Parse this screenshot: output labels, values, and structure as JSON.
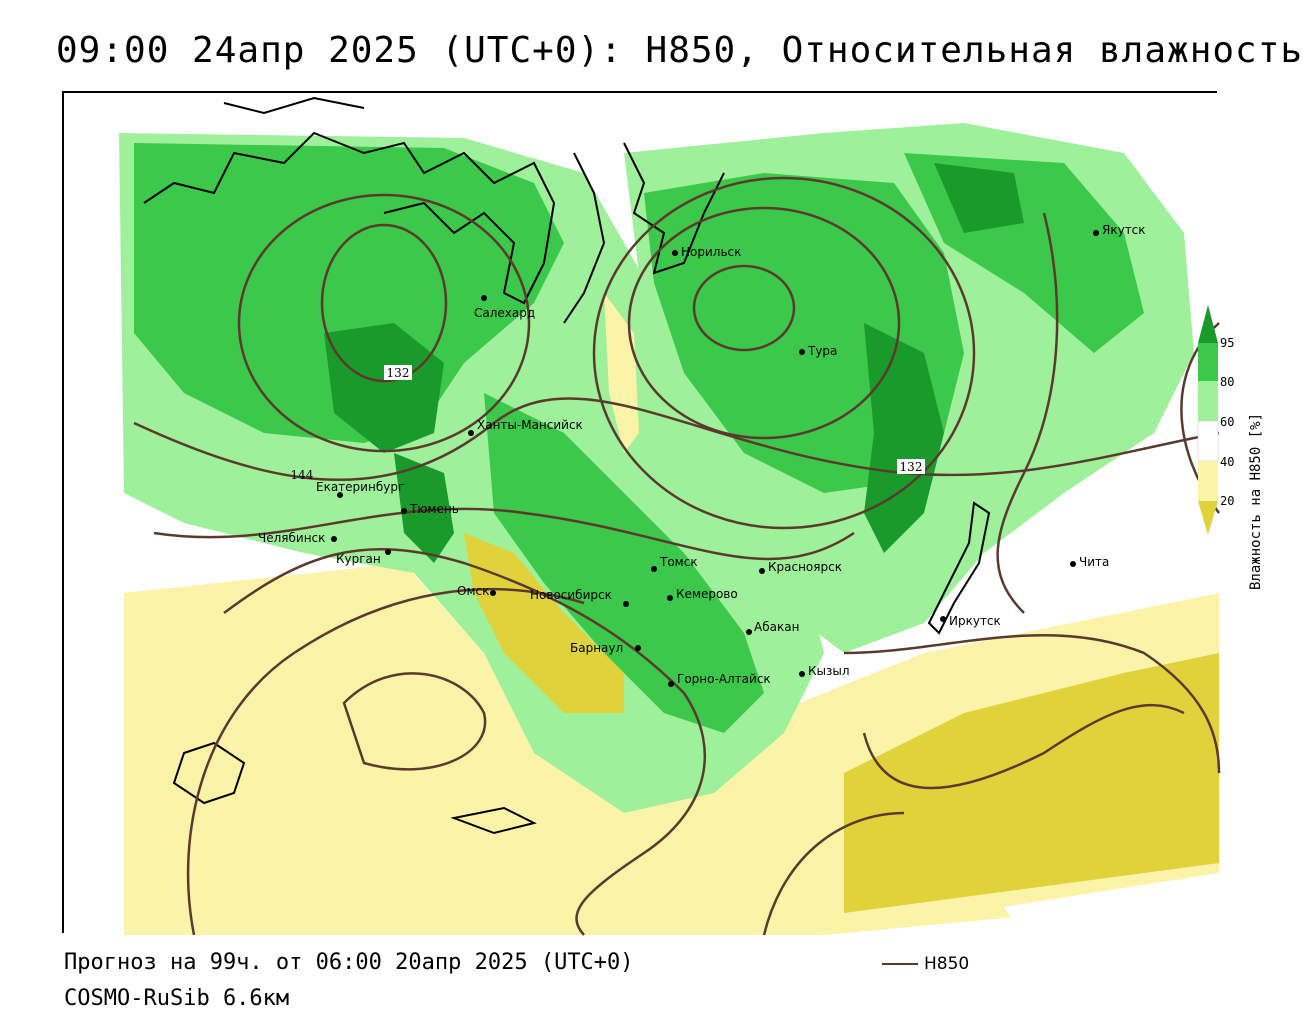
{
  "header": {
    "title": "09:00 24апр 2025 (UTC+0): H850, Относительная влажность"
  },
  "footer": {
    "forecast": "Прогноз на 99ч. от 06:00 20апр 2025 (UTC+0)",
    "model": "COSMO-RuSib 6.6км",
    "line_legend_label": "H850"
  },
  "legend": {
    "title": "Влажность на H850 [%]",
    "ticks": [
      "95",
      "80",
      "60",
      "40",
      "20"
    ],
    "colors": {
      "dark_green": "#1a9a2a",
      "green": "#3cc84a",
      "light_green": "#9ef09a",
      "pale_green": "#d6fbd0",
      "white": "#ffffff",
      "pale_yellow": "#fbf3a8",
      "yellow": "#e0d23a"
    }
  },
  "contours": {
    "color": "#5b3a2e",
    "labels": [
      "132",
      "132",
      "144"
    ]
  },
  "cities": [
    {
      "name": "Норильск"
    },
    {
      "name": "Салехард"
    },
    {
      "name": "Тура"
    },
    {
      "name": "Якутск"
    },
    {
      "name": "Ханты-Мансийск"
    },
    {
      "name": "Екатеринбург"
    },
    {
      "name": "Тюмень"
    },
    {
      "name": "Челябинск"
    },
    {
      "name": "Курган"
    },
    {
      "name": "Омск"
    },
    {
      "name": "Новосибирск"
    },
    {
      "name": "Томск"
    },
    {
      "name": "Кемерово"
    },
    {
      "name": "Красноярск"
    },
    {
      "name": "Барнаул"
    },
    {
      "name": "Абакан"
    },
    {
      "name": "Горно-Алтайск"
    },
    {
      "name": "Кызыл"
    },
    {
      "name": "Иркутск"
    },
    {
      "name": "Чита"
    }
  ]
}
